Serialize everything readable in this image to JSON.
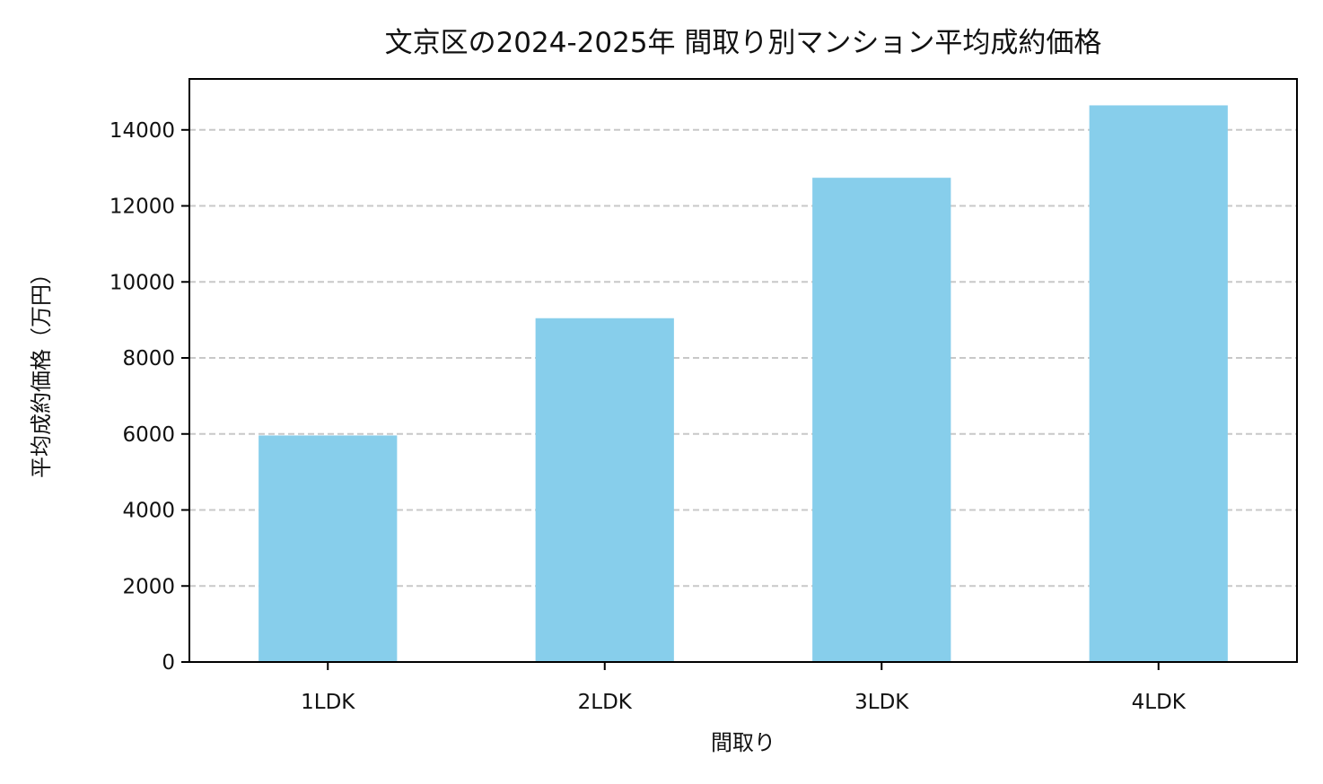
{
  "chart_data": {
    "type": "bar",
    "title": "文京区の2024-2025年 間取り別マンション平均成約価格",
    "xlabel": "間取り",
    "ylabel": "平均成約価格（万円）",
    "categories": [
      "1LDK",
      "2LDK",
      "3LDK",
      "4LDK"
    ],
    "values": [
      5960,
      9045,
      12740,
      14645
    ],
    "ylim": [
      0,
      15340
    ],
    "yticks": [
      0,
      2000,
      4000,
      6000,
      8000,
      10000,
      12000,
      14000
    ],
    "grid": "y-dashed",
    "bar_color": "#87CEEB",
    "grid_color": "#c8c8c8"
  }
}
